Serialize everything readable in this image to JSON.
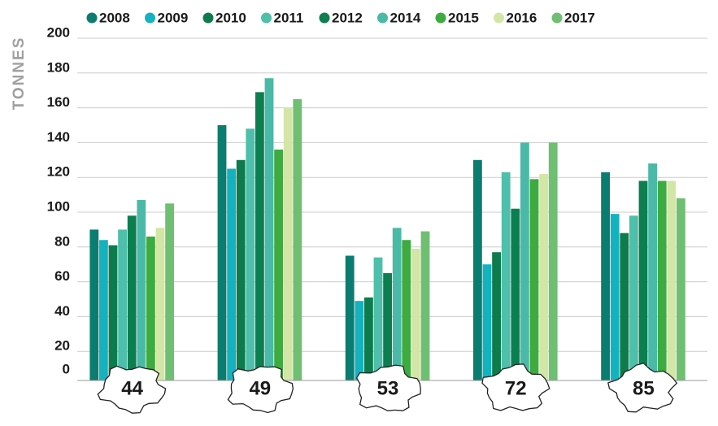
{
  "chart_data": {
    "type": "bar",
    "y_label": "TONNES",
    "categories": [
      "44",
      "49",
      "53",
      "72",
      "85"
    ],
    "series": [
      {
        "name": "2008",
        "color": "#0b7c70",
        "values": [
          90,
          150,
          75,
          130,
          123
        ]
      },
      {
        "name": "2009",
        "color": "#14b2bf",
        "values": [
          84,
          125,
          49,
          70,
          99
        ]
      },
      {
        "name": "2010",
        "color": "#0d7b4c",
        "values": [
          81,
          130,
          51,
          77,
          88
        ]
      },
      {
        "name": "2011",
        "color": "#4dbfaa",
        "values": [
          90,
          148,
          74,
          123,
          98
        ]
      },
      {
        "name": "2012",
        "color": "#0c7e50",
        "values": [
          98,
          169,
          65,
          102,
          118
        ]
      },
      {
        "name": "2014",
        "color": "#4bb9a7",
        "values": [
          107,
          177,
          91,
          140,
          128
        ]
      },
      {
        "name": "2015",
        "color": "#3dab3f",
        "values": [
          86,
          136,
          84,
          119,
          118
        ]
      },
      {
        "name": "2016",
        "color": "#d3e6a6",
        "values": [
          91,
          160,
          79,
          122,
          118
        ]
      },
      {
        "name": "2017",
        "color": "#6fbf72",
        "values": [
          105,
          165,
          89,
          140,
          108
        ]
      }
    ],
    "ylim": [
      0,
      200
    ],
    "yticks": [
      0,
      20,
      40,
      60,
      80,
      100,
      120,
      140,
      160,
      180,
      200
    ],
    "grid": true
  }
}
